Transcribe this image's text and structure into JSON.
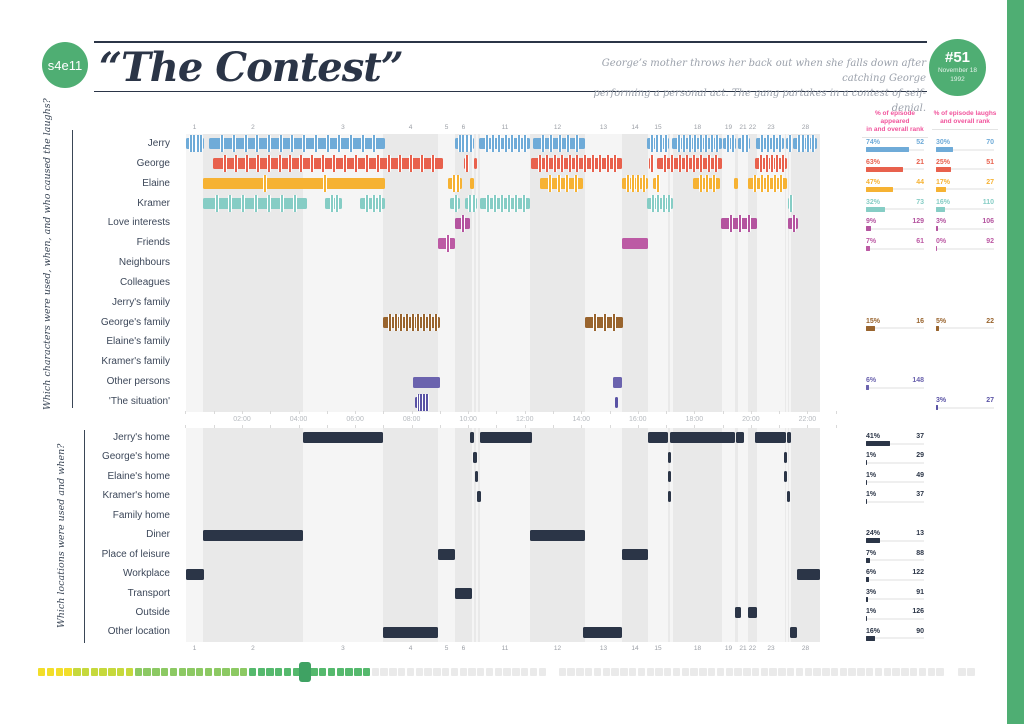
{
  "header": {
    "episode_code": "s4e11",
    "title": "“The Contest”",
    "description_line1": "George’s mother throws her back out when she falls down after catching George",
    "description_line2": "performing a personal act. The gang partakes in a contest of self-denial.",
    "episode_number": "#51",
    "air_date_line1": "November 18",
    "air_date_line2": "1992"
  },
  "stats_headers": {
    "appeared_line1": "% of episode appeared",
    "appeared_line2": "in and overall rank",
    "laughs_line1": "% of episode laughs",
    "laughs_line2": "and overall rank"
  },
  "chart_data": {
    "type": "gantt-timeline",
    "time_axis": {
      "origin_pct": 1.28,
      "hour_step_pct": 4.264,
      "hours": 24,
      "labels": [
        "02:00",
        "04:00",
        "06:00",
        "08:00",
        "10:00",
        "12:00",
        "14:00",
        "16:00",
        "18:00",
        "20:00",
        "22:00"
      ]
    },
    "scenes": [
      {
        "label": "1",
        "start": 1.36,
        "width": 2.56,
        "shade": 0
      },
      {
        "label": "2",
        "start": 3.92,
        "width": 15.08,
        "shade": 1
      },
      {
        "label": "3",
        "start": 19.0,
        "width": 12.07,
        "shade": 0
      },
      {
        "label": "4",
        "start": 31.07,
        "width": 8.3,
        "shade": 1
      },
      {
        "label": "5",
        "start": 39.37,
        "width": 2.56,
        "shade": 0
      },
      {
        "label": "6",
        "start": 41.93,
        "width": 2.56,
        "shade": 1
      },
      {
        "label": "",
        "start": 44.49,
        "width": 0.31,
        "shade": 0
      },
      {
        "label": "",
        "start": 44.8,
        "width": 0.3,
        "shade": 1
      },
      {
        "label": "",
        "start": 45.1,
        "width": 0.3,
        "shade": 0
      },
      {
        "label": "",
        "start": 45.4,
        "width": 0.3,
        "shade": 1
      },
      {
        "label": "11",
        "start": 45.7,
        "width": 7.54,
        "shade": 0
      },
      {
        "label": "12",
        "start": 53.24,
        "width": 8.3,
        "shade": 1
      },
      {
        "label": "13",
        "start": 61.54,
        "width": 5.58,
        "shade": 0
      },
      {
        "label": "14",
        "start": 67.12,
        "width": 3.92,
        "shade": 1
      },
      {
        "label": "15",
        "start": 71.04,
        "width": 3.02,
        "shade": 0
      },
      {
        "label": "",
        "start": 74.06,
        "width": 0.37,
        "shade": 1
      },
      {
        "label": "",
        "start": 74.43,
        "width": 0.38,
        "shade": 0
      },
      {
        "label": "18",
        "start": 74.81,
        "width": 7.39,
        "shade": 1
      },
      {
        "label": "19",
        "start": 82.2,
        "width": 1.96,
        "shade": 0
      },
      {
        "label": "",
        "start": 84.16,
        "width": 0.46,
        "shade": 1
      },
      {
        "label": "21",
        "start": 84.62,
        "width": 1.5,
        "shade": 0
      },
      {
        "label": "22",
        "start": 86.12,
        "width": 1.36,
        "shade": 1
      },
      {
        "label": "23",
        "start": 87.48,
        "width": 4.22,
        "shade": 0
      },
      {
        "label": "",
        "start": 91.7,
        "width": 0.23,
        "shade": 1
      },
      {
        "label": "",
        "start": 91.93,
        "width": 0.23,
        "shade": 0
      },
      {
        "label": "",
        "start": 92.16,
        "width": 0.22,
        "shade": 1
      },
      {
        "label": "",
        "start": 92.38,
        "width": 0.23,
        "shade": 0
      },
      {
        "label": "28",
        "start": 92.61,
        "width": 4.37,
        "shade": 1
      }
    ],
    "characters": {
      "question": "Which characters were used, when, and who caused the laughs?",
      "rows": [
        {
          "label": "Jerry",
          "color": "#6FABD8",
          "appeared": {
            "pct": "74%",
            "rank": "52"
          },
          "laughs": {
            "pct": "30%",
            "rank": "70"
          },
          "segments": [
            [
              1.4,
              2.6,
              4
            ],
            [
              4.9,
              26.5,
              14
            ],
            [
              41.9,
              2.9,
              4
            ],
            [
              45.6,
              7.7,
              7
            ],
            [
              53.7,
              7.8,
              5
            ],
            [
              70.9,
              3.3,
              4
            ],
            [
              74.7,
              7.5,
              8
            ],
            [
              82.4,
              1.9,
              2
            ],
            [
              84.6,
              1.8,
              2
            ],
            [
              87.3,
              4.3,
              4
            ],
            [
              91.9,
              0.7,
              1
            ],
            [
              92.9,
              3.6,
              4
            ]
          ]
        },
        {
          "label": "George",
          "color": "#E8614D",
          "appeared": {
            "pct": "63%",
            "rank": "21"
          },
          "laughs": {
            "pct": "25%",
            "rank": "51"
          },
          "segments": [
            [
              5.4,
              34.7,
              20
            ],
            [
              43.3,
              0.5,
              1
            ],
            [
              44.8,
              0.4,
              0
            ],
            [
              53.4,
              13.7,
              11
            ],
            [
              71.2,
              0.6,
              1
            ],
            [
              72.4,
              9.8,
              8
            ],
            [
              87.2,
              4.8,
              5
            ]
          ]
        },
        {
          "label": "Elaine",
          "color": "#F6B233",
          "appeared": {
            "pct": "47%",
            "rank": "44"
          },
          "laughs": {
            "pct": "17%",
            "rank": "27"
          },
          "segments": [
            [
              3.9,
              27.5,
              2
            ],
            [
              40.9,
              2.1,
              2
            ],
            [
              44.2,
              0.6,
              0
            ],
            [
              54.8,
              6.5,
              4
            ],
            [
              67.1,
              3.9,
              4
            ],
            [
              71.8,
              1.1,
              1
            ],
            [
              77.8,
              4.1,
              3
            ],
            [
              84.0,
              0.6,
              0
            ],
            [
              86.1,
              5.9,
              5
            ]
          ]
        },
        {
          "label": "Kramer",
          "color": "#86CDC5",
          "appeared": {
            "pct": "32%",
            "rank": "73"
          },
          "laughs": {
            "pct": "16%",
            "rank": "110"
          },
          "segments": [
            [
              3.9,
              15.7,
              7
            ],
            [
              22.3,
              2.6,
              2
            ],
            [
              27.6,
              3.8,
              3
            ],
            [
              41.2,
              1.5,
              1
            ],
            [
              43.4,
              1.8,
              2
            ],
            [
              45.7,
              7.5,
              6
            ],
            [
              70.9,
              3.9,
              4
            ],
            [
              92.2,
              0.6,
              1
            ]
          ]
        },
        {
          "label": "Love interests",
          "color": "#B4549F",
          "appeared": {
            "pct": "9%",
            "rank": "129"
          },
          "laughs": {
            "pct": "3%",
            "rank": "106"
          },
          "segments": [
            [
              41.9,
              2.3,
              1
            ],
            [
              82.0,
              5.5,
              3
            ],
            [
              92.2,
              1.4,
              1
            ]
          ]
        },
        {
          "label": "Friends",
          "color": "#BC5AA4",
          "appeared": {
            "pct": "7%",
            "rank": "61"
          },
          "laughs": {
            "pct": "0%",
            "rank": "92"
          },
          "segments": [
            [
              39.4,
              2.6,
              1
            ],
            [
              67.1,
              3.9,
              0
            ]
          ]
        },
        {
          "label": "Neighbours",
          "color": "#86CDC5",
          "appeared": null,
          "laughs": null,
          "segments": []
        },
        {
          "label": "Colleagues",
          "color": "#86CDC5",
          "appeared": null,
          "laughs": null,
          "segments": []
        },
        {
          "label": "Jerry's family",
          "color": "#99642E",
          "appeared": null,
          "laughs": null,
          "segments": []
        },
        {
          "label": "George's family",
          "color": "#99642E",
          "appeared": {
            "pct": "15%",
            "rank": "16"
          },
          "laughs": {
            "pct": "5%",
            "rank": "22"
          },
          "segments": [
            [
              31.1,
              8.6,
              9
            ],
            [
              61.5,
              5.7,
              3
            ]
          ]
        },
        {
          "label": "Elaine's family",
          "color": "#99642E",
          "appeared": null,
          "laughs": null,
          "segments": []
        },
        {
          "label": "Kramer's family",
          "color": "#99642E",
          "appeared": null,
          "laughs": null,
          "segments": []
        },
        {
          "label": "Other persons",
          "color": "#6B63AE",
          "appeared": {
            "pct": "6%",
            "rank": "148"
          },
          "laughs": null,
          "segments": [
            [
              35.6,
              4.1,
              0
            ],
            [
              65.8,
              1.3,
              0
            ]
          ]
        },
        {
          "label": "'The situation'",
          "color": "#5A53A5",
          "appeared": null,
          "laughs": {
            "pct": "3%",
            "rank": "27"
          },
          "segments": [
            [
              35.9,
              2.0,
              4
            ],
            [
              66.1,
              0.4,
              0
            ]
          ]
        }
      ]
    },
    "locations": {
      "question": "Which locations were used and when?",
      "color": "#2B3547",
      "rows": [
        {
          "label": "Jerry's home",
          "appeared": {
            "pct": "41%",
            "rank": "37"
          },
          "segments": [
            [
              19.0,
              12.1
            ],
            [
              44.2,
              0.6
            ],
            [
              45.7,
              7.8
            ],
            [
              71.0,
              3.1
            ],
            [
              74.4,
              9.8
            ],
            [
              84.3,
              1.2
            ],
            [
              87.2,
              4.7
            ],
            [
              92.0,
              0.6
            ]
          ]
        },
        {
          "label": "George's home",
          "appeared": {
            "pct": "1%",
            "rank": "29"
          },
          "segments": [
            [
              44.7,
              0.5
            ],
            [
              74.0,
              0.5
            ],
            [
              91.5,
              0.5
            ]
          ]
        },
        {
          "label": "Elaine's home",
          "appeared": {
            "pct": "1%",
            "rank": "49"
          },
          "segments": [
            [
              44.9,
              0.5
            ],
            [
              74.0,
              0.5
            ],
            [
              91.5,
              0.5
            ]
          ]
        },
        {
          "label": "Kramer's home",
          "appeared": {
            "pct": "1%",
            "rank": "37"
          },
          "segments": [
            [
              45.3,
              0.5
            ],
            [
              74.0,
              0.5
            ],
            [
              92.0,
              0.5
            ]
          ]
        },
        {
          "label": "Family home",
          "appeared": null,
          "segments": []
        },
        {
          "label": "Diner",
          "appeared": {
            "pct": "24%",
            "rank": "13"
          },
          "segments": [
            [
              3.9,
              15.1
            ],
            [
              53.2,
              8.3
            ]
          ]
        },
        {
          "label": "Place of leisure",
          "appeared": {
            "pct": "7%",
            "rank": "88"
          },
          "segments": [
            [
              39.4,
              2.6
            ],
            [
              67.1,
              3.9
            ]
          ]
        },
        {
          "label": "Workplace",
          "appeared": {
            "pct": "6%",
            "rank": "122"
          },
          "segments": [
            [
              1.4,
              2.6
            ],
            [
              93.5,
              3.5
            ]
          ]
        },
        {
          "label": "Transport",
          "appeared": {
            "pct": "3%",
            "rank": "91"
          },
          "segments": [
            [
              41.9,
              2.6
            ]
          ]
        },
        {
          "label": "Outside",
          "appeared": {
            "pct": "1%",
            "rank": "126"
          },
          "segments": [
            [
              84.2,
              0.8
            ],
            [
              86.1,
              1.4
            ]
          ]
        },
        {
          "label": "Other location",
          "appeared": {
            "pct": "16%",
            "rank": "90"
          },
          "segments": [
            [
              31.1,
              8.3
            ],
            [
              61.2,
              5.9
            ],
            [
              92.5,
              1.0
            ]
          ]
        }
      ]
    }
  },
  "episode_nav": {
    "handle_index": 30,
    "handle_color": "#3FA263",
    "groups": [
      {
        "n": 4,
        "color": "#F2DE2A"
      },
      {
        "n": 7,
        "color": "#C6D93C"
      },
      {
        "n": 13,
        "color": "#8CC963"
      },
      {
        "n": 14,
        "color": "#55B96D"
      },
      {
        "n": 20,
        "color": "#EAEAEA"
      },
      {
        "gap": 10
      },
      {
        "n": 44,
        "color": "#EAEAEA"
      },
      {
        "gap": 12
      },
      {
        "n": 2,
        "color": "#EAEAEA"
      }
    ]
  }
}
